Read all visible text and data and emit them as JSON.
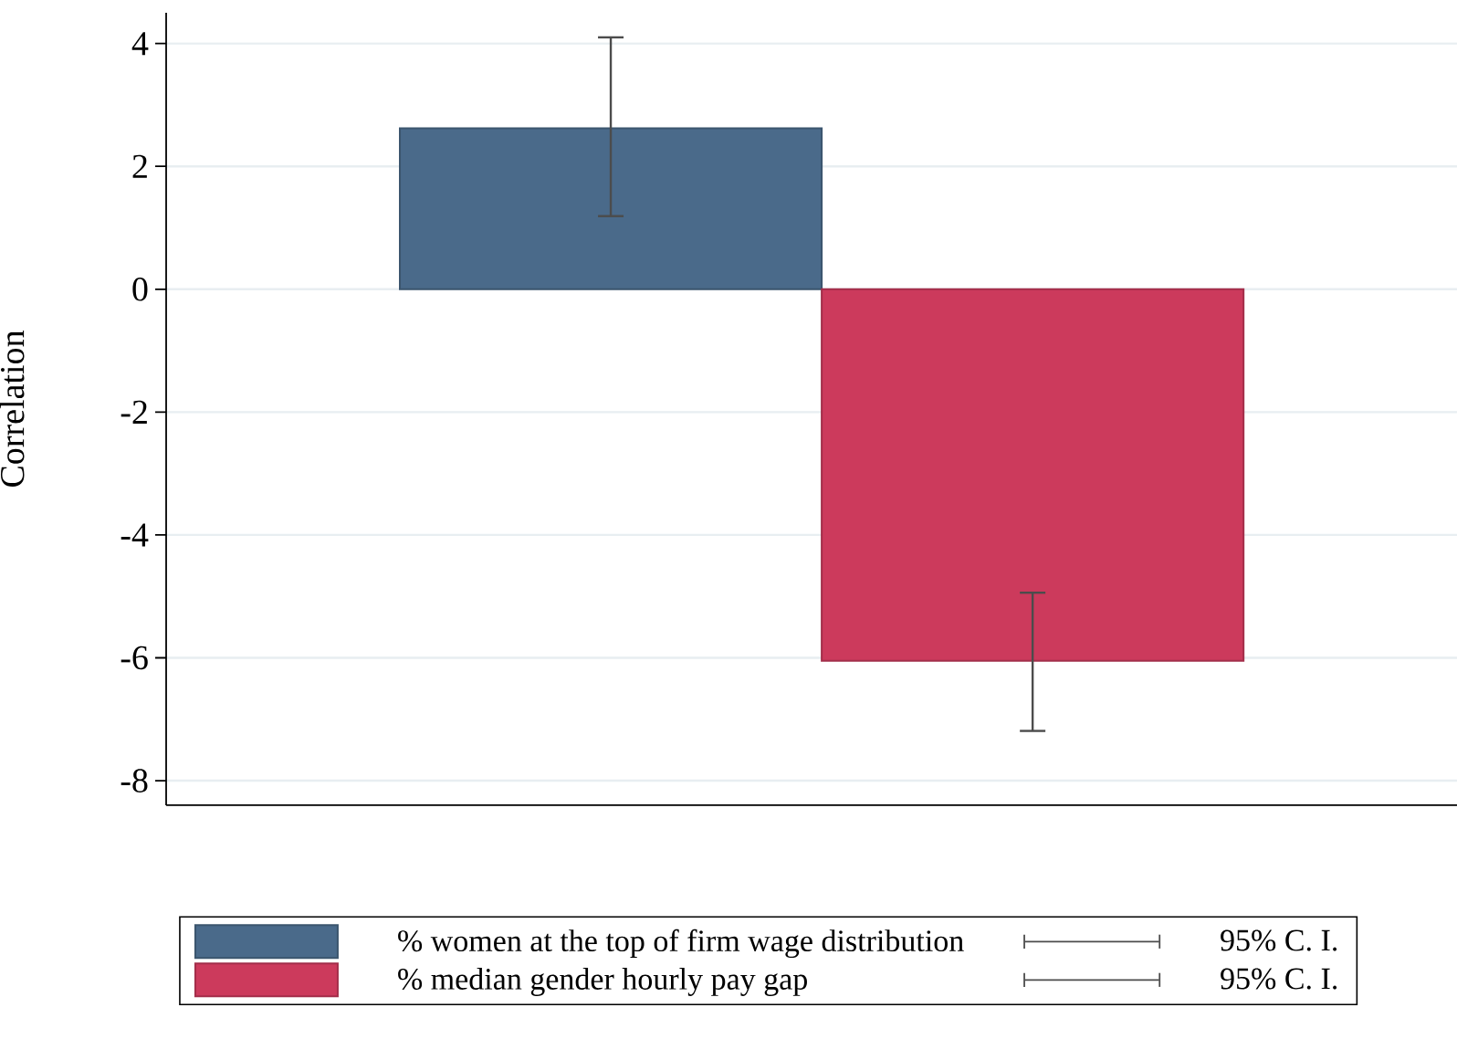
{
  "chart_data": {
    "type": "bar",
    "ylabel": "Correlation",
    "categories": [
      null
    ],
    "series": [
      {
        "name": "% women at the top of firm wage distribution",
        "color": "#4a6a8a",
        "values": [
          2.62
        ],
        "errors": [
          [
            1.19,
            4.1
          ]
        ]
      },
      {
        "name": "% median gender hourly pay gap",
        "color": "#cc3a5c",
        "values": [
          -6.05
        ],
        "errors": [
          [
            -7.19,
            -4.94
          ]
        ]
      }
    ],
    "ylim": [
      -8.4,
      4.5
    ],
    "yticks": [
      -8,
      -6,
      -4,
      -2,
      0,
      2,
      4
    ],
    "grid": "y",
    "legend": "bottom",
    "annotations": [
      "95% C. I.",
      "95% C. I."
    ]
  }
}
